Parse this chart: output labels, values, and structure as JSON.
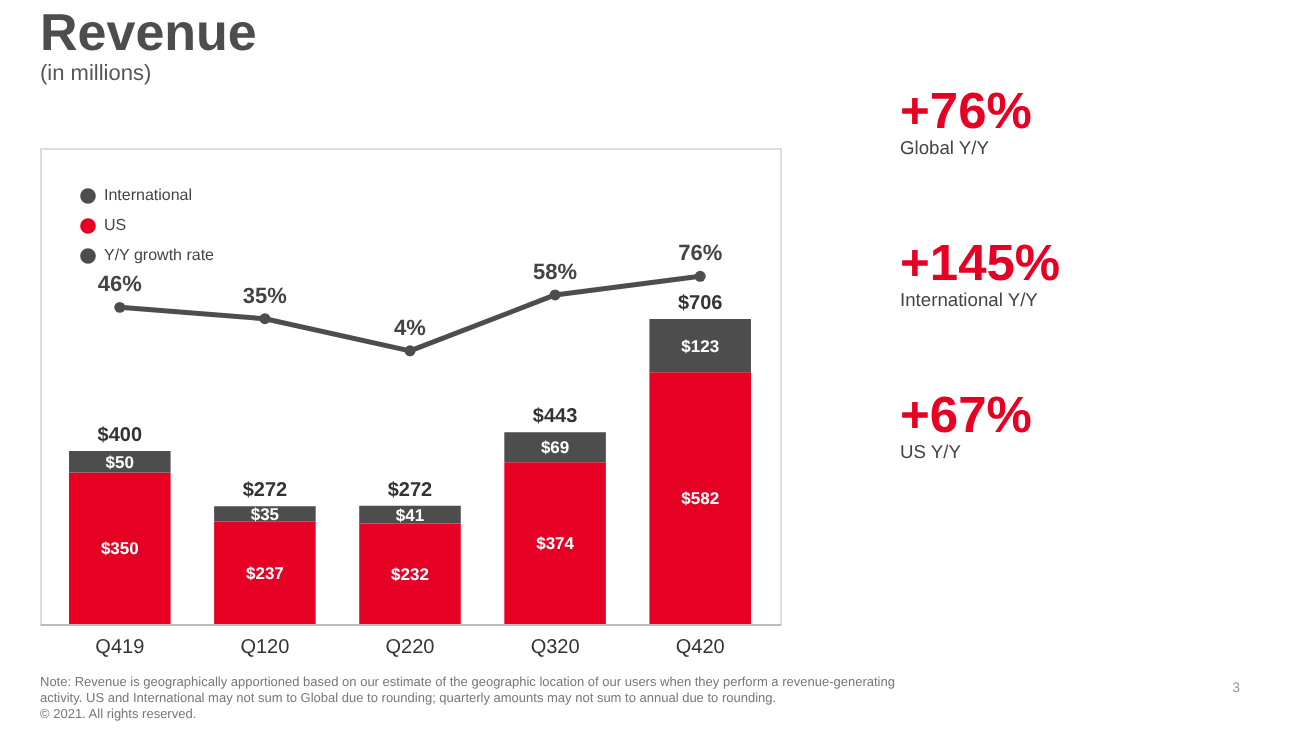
{
  "chart_data": {
    "type": "bar",
    "title": "Revenue",
    "subtitle": "(in millions)",
    "stacked": true,
    "categories": [
      "Q419",
      "Q120",
      "Q220",
      "Q320",
      "Q420"
    ],
    "series": [
      {
        "name": "US",
        "color": "#e60023",
        "values": [
          350,
          237,
          232,
          374,
          582
        ],
        "value_labels": [
          "$350",
          "$237",
          "$232",
          "$374",
          "$582"
        ]
      },
      {
        "name": "International",
        "color": "#4d4d4d",
        "values": [
          50,
          35,
          41,
          69,
          123
        ],
        "value_labels": [
          "$50",
          "$35",
          "$41",
          "$69",
          "$123"
        ]
      },
      {
        "name": "Y/Y growth rate",
        "type": "line",
        "axis": "y2",
        "color": "#4d4d4d",
        "values": [
          46,
          35,
          4,
          58,
          76
        ],
        "value_labels": [
          "46%",
          "35%",
          "4%",
          "58%",
          "76%"
        ]
      }
    ],
    "totals": [
      "$400",
      "$272",
      "$272",
      "$443",
      "$706"
    ],
    "ylim": [
      0,
      1100
    ],
    "y2lim": [
      -260,
      200
    ],
    "tick_labels": "x",
    "grid": false,
    "legend": "top left",
    "marker": "circle",
    "line_style": "solid",
    "annotations": [
      "+76%",
      "Global Y/Y",
      "+145%",
      "International Y/Y",
      "+67%",
      "US Y/Y",
      "Note: Revenue is geographically apportioned based on our estimate of the geographic location of our users when they perform a revenue-generating activity. US and International may not sum to Global due to rounding; quarterly amounts may not sum to annual due to rounding.",
      "© 2021. All rights reserved.",
      "3"
    ]
  }
}
